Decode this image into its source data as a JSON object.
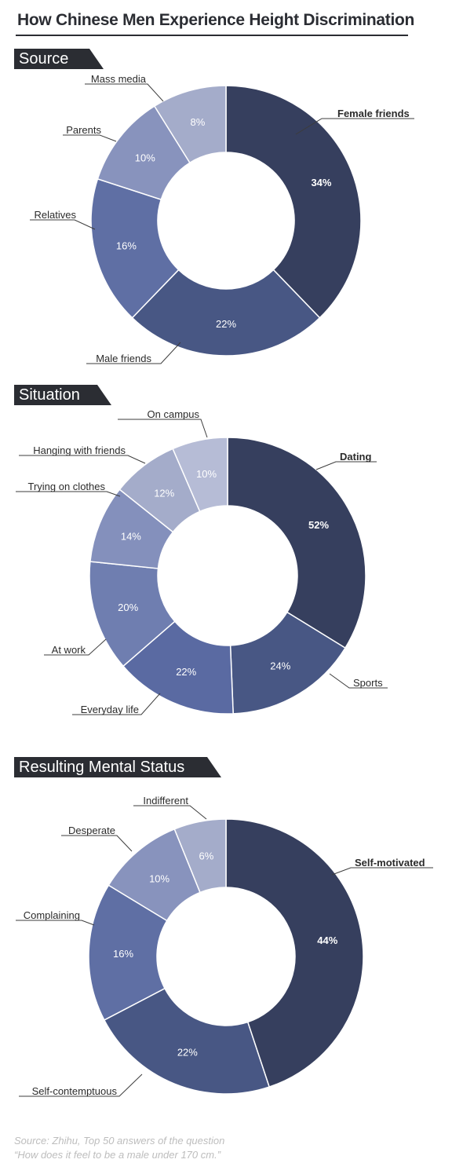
{
  "title": "How Chinese Men Experience Height Discrimination",
  "source_note": {
    "line1": "Source:  Zhihu, Top 50 answers of the question",
    "line2": "“How does it feel to be a male under 170 cm.”"
  },
  "chart_data": [
    {
      "type": "pie",
      "title": "Source",
      "categories": [
        "Female friends",
        "Male friends",
        "Relatives",
        "Parents",
        "Mass media"
      ],
      "values": [
        34,
        22,
        16,
        10,
        8
      ],
      "value_labels": [
        "34%",
        "22%",
        "16%",
        "10%",
        "8%"
      ],
      "colors": [
        "#363f5e",
        "#485784",
        "#5f6fa4",
        "#8893bd",
        "#a4acca"
      ]
    },
    {
      "type": "pie",
      "title": "Situation",
      "categories": [
        "Dating",
        "Sports",
        "Everyday life",
        "At work",
        "Trying on clothes",
        "Hanging with friends",
        "On campus"
      ],
      "values": [
        52,
        24,
        22,
        20,
        14,
        12,
        10
      ],
      "value_labels": [
        "52%",
        "24%",
        "22%",
        "20%",
        "14%",
        "12%",
        "10%"
      ],
      "colors": [
        "#363f5e",
        "#485784",
        "#5a6aa2",
        "#6f7eb0",
        "#8490bc",
        "#a4acca",
        "#b6bcd6"
      ]
    },
    {
      "type": "pie",
      "title": "Resulting Mental Status",
      "categories": [
        "Self-motivated",
        "Self-contemptuous",
        "Complaining",
        "Desperate",
        "Indifferent"
      ],
      "values": [
        44,
        22,
        16,
        10,
        6
      ],
      "value_labels": [
        "44%",
        "22%",
        "16%",
        "10%",
        "6%"
      ],
      "colors": [
        "#363f5e",
        "#485784",
        "#5f6fa4",
        "#8893bd",
        "#a4acca"
      ]
    }
  ]
}
